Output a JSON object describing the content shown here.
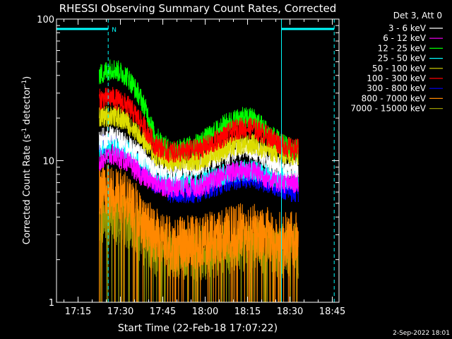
{
  "chart_data": {
    "type": "line",
    "title": "RHESSI Observing Summary Count Rates, Corrected",
    "xlabel": "Start Time (22-Feb-18 17:07:22)",
    "ylabel": "Corrected Count Rate (s",
    "ylabel_sup1": "-1",
    "ylabel_mid": " detector",
    "ylabel_sup2": "-1",
    "ylabel_end": ")",
    "y_scale": "log",
    "ylim": [
      1,
      100
    ],
    "xlim": [
      "17:07:22",
      "18:47:22"
    ],
    "x_ticks": [
      "17:15",
      "17:30",
      "17:45",
      "18:00",
      "18:15",
      "18:30",
      "18:45"
    ],
    "y_ticks": [
      "1",
      "10",
      "100"
    ],
    "grid": false,
    "legend_placement": "top-right",
    "legend_title": "Det 3, Att 0",
    "timestamp": "2-Sep-2022 18:01",
    "night_marker_label": "N",
    "night_intervals": [
      [
        "17:07:22",
        "17:25:40"
      ],
      [
        "18:27:00",
        "18:45:40"
      ]
    ],
    "vertical_markers": {
      "solid": [
        "17:07:22",
        "18:27:00"
      ],
      "dashed": [
        "17:25:40",
        "18:45:40"
      ]
    },
    "data_interval": [
      "17:22:30",
      "18:33:00"
    ],
    "series": [
      {
        "name": "3 - 6 keV",
        "color": "#ffffff",
        "x": [
          "17:22:30",
          "17:27",
          "17:32",
          "17:37",
          "17:42",
          "17:47",
          "17:52",
          "17:57",
          "18:02",
          "18:07",
          "18:12",
          "18:17",
          "18:22",
          "18:27",
          "18:31"
        ],
        "values": [
          14,
          15,
          13,
          11,
          9,
          8.5,
          8.5,
          9,
          10,
          11,
          12,
          12,
          10,
          9,
          9
        ]
      },
      {
        "name": "6 - 12 keV",
        "color": "#ff00ff",
        "x": [
          "17:22:30",
          "17:27",
          "17:32",
          "17:37",
          "17:42",
          "17:47",
          "17:52",
          "17:57",
          "18:02",
          "18:07",
          "18:12",
          "18:17",
          "18:22",
          "18:27",
          "18:31"
        ],
        "values": [
          10,
          11,
          10,
          8,
          7,
          6.5,
          6.5,
          6.5,
          7,
          8,
          8.5,
          8.5,
          7.5,
          7,
          7
        ]
      },
      {
        "name": "12 - 25 keV",
        "color": "#00ff00",
        "x": [
          "17:22:30",
          "17:27",
          "17:32",
          "17:37",
          "17:42",
          "17:47",
          "17:52",
          "17:57",
          "18:02",
          "18:07",
          "18:12",
          "18:17",
          "18:22",
          "18:27",
          "18:31"
        ],
        "values": [
          40,
          45,
          40,
          28,
          15,
          12,
          12,
          13,
          15,
          18,
          20,
          20,
          16,
          13,
          12
        ]
      },
      {
        "name": "25 - 50 keV",
        "color": "#00ffff",
        "x": [
          "17:22:30",
          "17:27",
          "17:32",
          "17:37",
          "17:42",
          "17:47",
          "17:52",
          "17:57",
          "18:02",
          "18:07",
          "18:12",
          "18:17",
          "18:22",
          "18:27",
          "18:31"
        ],
        "values": [
          12,
          13,
          12,
          10,
          8,
          7,
          7,
          7,
          7.5,
          8,
          8.5,
          8.5,
          8,
          7.5,
          7.5
        ]
      },
      {
        "name": "50 - 100 keV",
        "color": "#dddd00",
        "x": [
          "17:22:30",
          "17:27",
          "17:32",
          "17:37",
          "17:42",
          "17:47",
          "17:52",
          "17:57",
          "18:02",
          "18:07",
          "18:12",
          "18:17",
          "18:22",
          "18:27",
          "18:31"
        ],
        "values": [
          20,
          21,
          19,
          15,
          11,
          10,
          10,
          10,
          11,
          12,
          13,
          13,
          12,
          11,
          11
        ]
      },
      {
        "name": "100 - 300 keV",
        "color": "#ff0000",
        "x": [
          "17:22:30",
          "17:27",
          "17:32",
          "17:37",
          "17:42",
          "17:47",
          "17:52",
          "17:57",
          "18:02",
          "18:07",
          "18:12",
          "18:17",
          "18:22",
          "18:27",
          "18:31"
        ],
        "values": [
          27,
          28,
          25,
          19,
          13,
          11.5,
          11.5,
          12,
          13,
          15,
          17,
          17,
          15,
          13,
          12
        ]
      },
      {
        "name": "300 - 800 keV",
        "color": "#0000ff",
        "x": [
          "17:22:30",
          "17:27",
          "17:32",
          "17:37",
          "17:42",
          "17:47",
          "17:52",
          "17:57",
          "18:02",
          "18:07",
          "18:12",
          "18:17",
          "18:22",
          "18:27",
          "18:31"
        ],
        "values": [
          13,
          13.5,
          12,
          9,
          7,
          6,
          6,
          6,
          6.5,
          7,
          7.5,
          7.5,
          7,
          6.5,
          6
        ]
      },
      {
        "name": "800 - 7000 keV",
        "color": "#ff8800",
        "x": [
          "17:22:30",
          "17:27",
          "17:32",
          "17:37",
          "17:42",
          "17:47",
          "17:52",
          "17:57",
          "18:02",
          "18:07",
          "18:12",
          "18:17",
          "18:22",
          "18:27",
          "18:31"
        ],
        "values": [
          6,
          6,
          5.5,
          4,
          3,
          2.6,
          2.6,
          2.7,
          2.8,
          3,
          3.2,
          3.2,
          3,
          2.8,
          2.8
        ]
      },
      {
        "name": "7000 - 15000 keV",
        "color": "#999900",
        "x": [
          "17:22:30",
          "17:27",
          "17:32",
          "17:37",
          "17:42",
          "17:47",
          "17:52",
          "17:57",
          "18:02",
          "18:07",
          "18:12",
          "18:17",
          "18:22",
          "18:27",
          "18:31"
        ],
        "values": [
          4,
          4,
          3.8,
          3,
          2.4,
          2.2,
          2.2,
          2.2,
          2.3,
          2.4,
          2.5,
          2.5,
          2.4,
          2.3,
          2.3
        ]
      }
    ]
  }
}
